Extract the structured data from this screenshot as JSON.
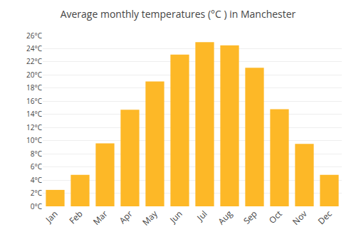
{
  "chart_data": {
    "type": "bar",
    "title": "Average monthly temperatures (°C ) in Manchester",
    "categories": [
      "Jan",
      "Feb",
      "Mar",
      "Apr",
      "May",
      "Jun",
      "Jul",
      "Aug",
      "Sep",
      "Oct",
      "Nov",
      "Dec"
    ],
    "values": [
      2.5,
      4.8,
      9.6,
      14.7,
      19.0,
      23.1,
      25.0,
      24.5,
      21.1,
      14.8,
      9.5,
      4.8
    ],
    "color": "#FDB827",
    "ylim": [
      0,
      26
    ],
    "yticks": [
      {
        "value": 0,
        "label": "0°C"
      },
      {
        "value": 2,
        "label": "2°C"
      },
      {
        "value": 4,
        "label": "4°C"
      },
      {
        "value": 6,
        "label": "6°C"
      },
      {
        "value": 8,
        "label": "8°C"
      },
      {
        "value": 10,
        "label": "10°C"
      },
      {
        "value": 12,
        "label": "12°C"
      },
      {
        "value": 14,
        "label": "14°C"
      },
      {
        "value": 16,
        "label": "16°C"
      },
      {
        "value": 18,
        "label": "18°C"
      },
      {
        "value": 20,
        "label": "20°C"
      },
      {
        "value": 22,
        "label": "22°C"
      },
      {
        "value": 24,
        "label": "24°C"
      },
      {
        "value": 26,
        "label": "26°C"
      }
    ],
    "grid": true
  }
}
